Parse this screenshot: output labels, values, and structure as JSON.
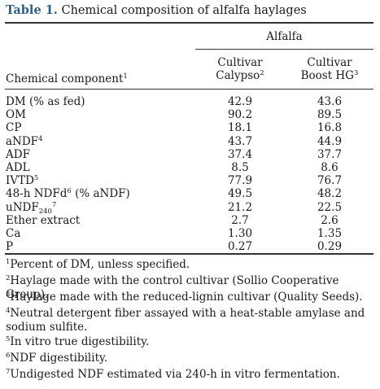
{
  "title": {
    "label": "Table 1.",
    "text": "Chemical composition of alfalfa haylages"
  },
  "header": {
    "group": "Alfalfa",
    "col0": "Chemical component",
    "col0_sup": "1",
    "col1_line1": "Cultivar",
    "col1_line2": "Calypso",
    "col1_sup": "2",
    "col2_line1": "Cultivar",
    "col2_line2": "Boost HG",
    "col2_sup": "3"
  },
  "rows": [
    {
      "name": "DM (% as fed)",
      "v1": "42.9",
      "v2": "43.6"
    },
    {
      "name": "OM",
      "v1": "90.2",
      "v2": "89.5"
    },
    {
      "name": "CP",
      "v1": "18.1",
      "v2": "16.8"
    },
    {
      "name": "aNDF",
      "sup": "4",
      "v1": "43.7",
      "v2": "44.9"
    },
    {
      "name": "ADF",
      "v1": "37.4",
      "v2": "37.7"
    },
    {
      "name": "ADL",
      "v1": "8.5",
      "v2": "8.6"
    },
    {
      "name": "IVTD",
      "sup": "5",
      "v1": "77.9",
      "v2": "76.7"
    },
    {
      "name": "48-h NDFd",
      "sup": "6",
      "suffix": " (% aNDF)",
      "v1": "49.5",
      "v2": "48.2"
    },
    {
      "name": "uNDF",
      "sub": "240",
      "sup": "7",
      "v1": "21.2",
      "v2": "22.5"
    },
    {
      "name": "Ether extract",
      "v1": "2.7",
      "v2": "2.6"
    },
    {
      "name": "Ca",
      "v1": "1.30",
      "v2": "1.35"
    },
    {
      "name": "P",
      "v1": "0.27",
      "v2": "0.29"
    }
  ],
  "footnotes": [
    {
      "mark": "1",
      "text": "Percent of DM, unless specified."
    },
    {
      "mark": "2",
      "text": "Haylage made with the control cultivar (Sollio Cooperative Group)."
    },
    {
      "mark": "3",
      "text": "Haylage made with the reduced-lignin cultivar (Quality Seeds)."
    },
    {
      "mark": "4",
      "text": "Neutral detergent fiber assayed with a heat-stable amylase and sodium sulfite."
    },
    {
      "mark": "5",
      "text": "In vitro true digestibility."
    },
    {
      "mark": "6",
      "text": "NDF digestibility."
    },
    {
      "mark": "7",
      "text": "Undigested NDF estimated via 240-h in vitro fermentation."
    }
  ]
}
